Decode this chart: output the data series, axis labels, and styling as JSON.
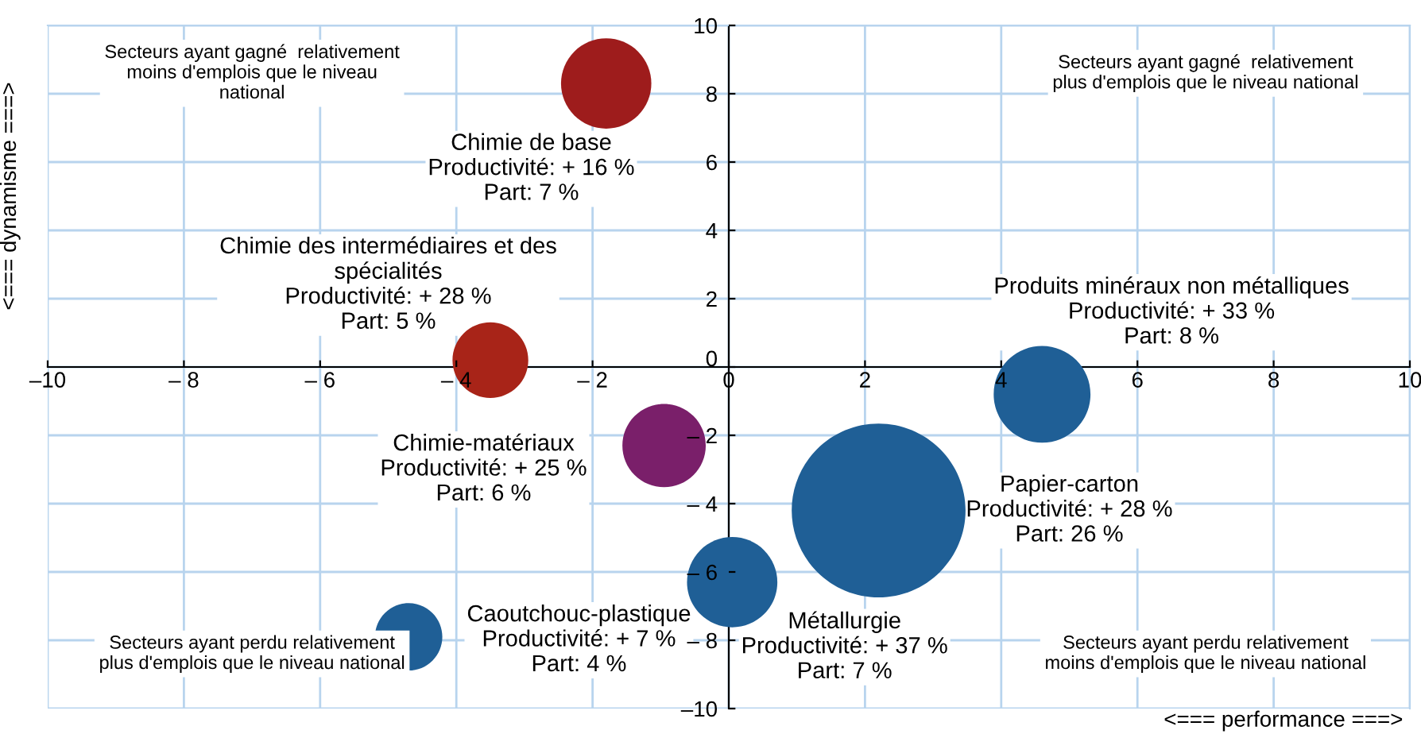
{
  "chart_data": {
    "type": "bubble",
    "xlabel": "<=== performance ===>",
    "ylabel": "<=== dynamisme ===>",
    "x": [
      -1.8,
      -3.5,
      -0.95,
      4.6,
      2.2,
      0.05,
      -4.7
    ],
    "values": [
      8.3,
      0.2,
      -2.3,
      -0.8,
      -4.2,
      -6.3,
      -7.9
    ],
    "sizes": [
      0.27,
      0.19,
      0.23,
      0.31,
      1,
      0.27,
      0.15
    ],
    "colors": [
      "#9e1c1c",
      "#a82418",
      "#7a1f6a",
      "#1f5f96",
      "#1f5f96",
      "#1f5f96",
      "#1f5f96"
    ],
    "xlim": [
      -10,
      10
    ],
    "ylim": [
      -10,
      10
    ],
    "xticks": [
      {
        "value": -10,
        "label": "–10"
      },
      {
        "value": -8,
        "label": "– 8"
      },
      {
        "value": -6,
        "label": "– 6"
      },
      {
        "value": -4,
        "label": "– 4"
      },
      {
        "value": -2,
        "label": "– 2"
      },
      0,
      2,
      4,
      6,
      8,
      10
    ],
    "yticks": [
      {
        "value": -10,
        "label": "–10"
      },
      {
        "value": -8,
        "label": "– 8"
      },
      {
        "value": -6,
        "label": "– 6"
      },
      {
        "value": -4,
        "label": "– 4"
      },
      {
        "value": -2,
        "label": "– 2"
      },
      0,
      2,
      4,
      6,
      8,
      10
    ],
    "grid": true,
    "legend": false,
    "annotations": [
      "Chimie de base\nProductivité: + 16 %\nPart: 7 %",
      "Chimie des intermédiaires et des\nspécialités\nProductivité: + 28 %\nPart: 5 %",
      "Chimie-matériaux\nProductivité: + 25 %\nPart: 6 %",
      "Produits minéraux non métalliques\nProductivité: + 33 %\nPart: 8 %",
      "Papier-carton\nProductivité: + 28 %\nPart: 26 %",
      "Métallurgie\nProductivité: + 37 %\nPart: 7 %",
      "Caoutchouc-plastique\nProductivité: + 7 %\nPart: 4 %",
      "Secteurs ayant gagné  relativement\nmoins d'emplois que le niveau\nnational",
      "Secteurs ayant gagné  relativement\nplus d'emplois que le niveau national",
      "Secteurs ayant perdu relativement\nplus d'emplois que le niveau national",
      "Secteurs ayant perdu relativement\nmoins d'emplois que le niveau national"
    ]
  }
}
